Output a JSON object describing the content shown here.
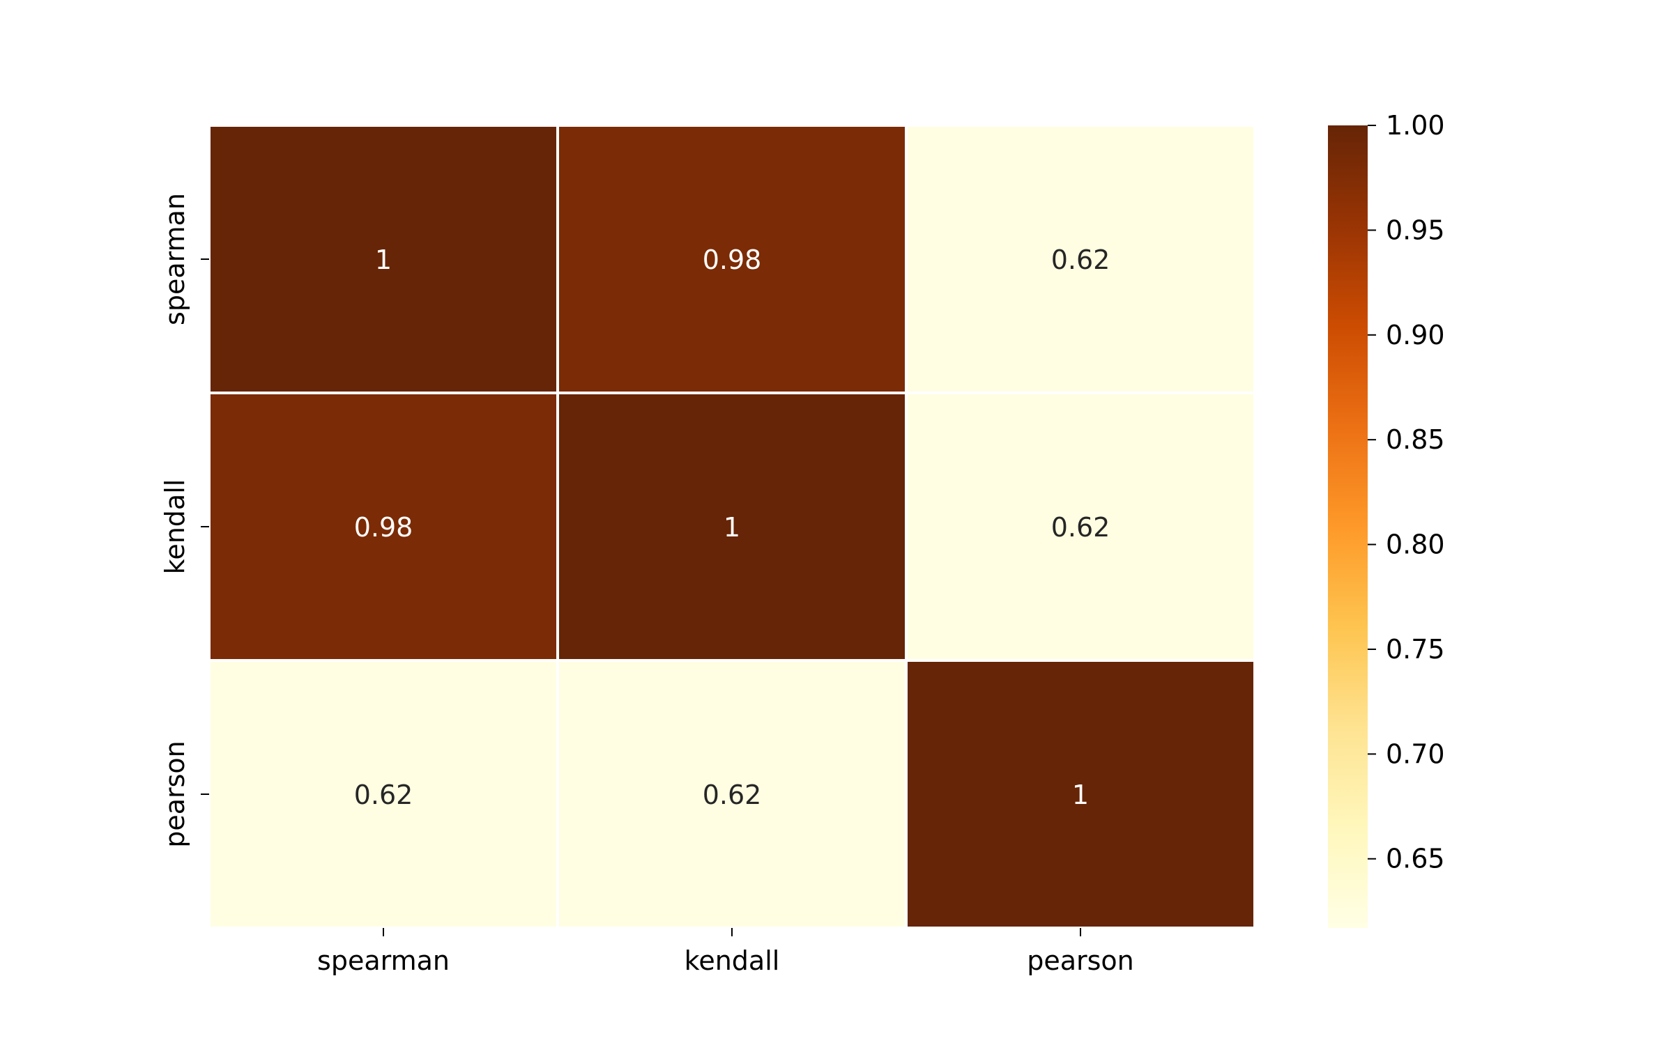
{
  "chart_data": {
    "type": "heatmap",
    "title": "",
    "xlabel": "",
    "ylabel": "",
    "x_categories": [
      "spearman",
      "kendall",
      "pearson"
    ],
    "y_categories": [
      "spearman",
      "kendall",
      "pearson"
    ],
    "values": [
      [
        1.0,
        0.98,
        0.62
      ],
      [
        0.98,
        1.0,
        0.62
      ],
      [
        0.62,
        0.62,
        1.0
      ]
    ],
    "cell_labels": [
      [
        "1",
        "0.98",
        "0.62"
      ],
      [
        "0.98",
        "1",
        "0.62"
      ],
      [
        "0.62",
        "0.62",
        "1"
      ]
    ],
    "colormap": "YlOrBr",
    "vmin": 0.617,
    "vmax": 1.0,
    "colorbar": {
      "ticks": [
        0.65,
        0.7,
        0.75,
        0.8,
        0.85,
        0.9,
        0.95,
        1.0
      ],
      "tick_labels": [
        "0.65",
        "0.70",
        "0.75",
        "0.80",
        "0.85",
        "0.90",
        "0.95",
        "1.00"
      ],
      "stops": [
        "#ffffe5",
        "#fff7bc",
        "#fee391",
        "#fec44f",
        "#fe9929",
        "#ec7014",
        "#cc4c02",
        "#993404",
        "#662506"
      ]
    },
    "grid": false,
    "legend": "colorbar-right"
  }
}
